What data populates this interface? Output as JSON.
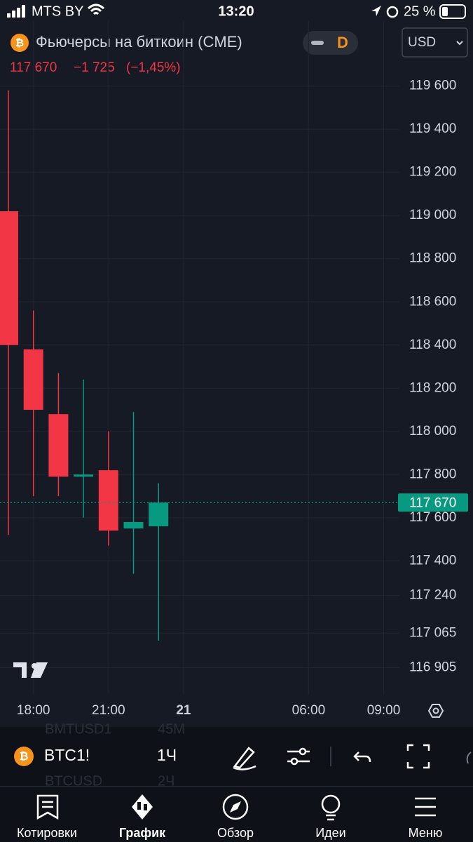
{
  "status_bar": {
    "carrier": "MTS BY",
    "time": "13:20",
    "battery": "25 %"
  },
  "header": {
    "title": "Фьючерсы на биткоин (CME)",
    "interval_button": "D",
    "currency": "USD",
    "price": "117 670",
    "change": "−1 725",
    "change_percent": "(−1,45%)"
  },
  "chart_data": {
    "type": "candlestick",
    "categories": [
      null,
      "18:00",
      null,
      null,
      "21:00",
      null,
      null,
      "21",
      null,
      null,
      null,
      null,
      "06:00",
      null,
      null,
      "09:00"
    ],
    "open": [
      119020,
      118380,
      118080,
      117790,
      117820,
      117550,
      117560,
      null,
      null,
      null,
      null,
      null,
      null,
      null,
      null,
      null
    ],
    "high": [
      119580,
      118560,
      118270,
      118240,
      118000,
      118090,
      117760,
      null,
      null,
      null,
      null,
      null,
      null,
      null,
      null,
      null
    ],
    "low": [
      117520,
      117700,
      117700,
      117600,
      117470,
      117340,
      117030,
      null,
      null,
      null,
      null,
      null,
      null,
      null,
      null,
      null
    ],
    "close": [
      118400,
      118100,
      117790,
      117800,
      117540,
      117580,
      117670,
      null,
      null,
      null,
      null,
      null,
      null,
      null,
      null,
      null
    ],
    "up_color": "#089981",
    "down_color": "#f23645",
    "ylim": [
      116780,
      119690
    ],
    "yticks": [
      {
        "value": 116905,
        "label": "116 905"
      },
      {
        "value": 117065,
        "label": "117 065"
      },
      {
        "value": 117240,
        "label": "117 240"
      },
      {
        "value": 117400,
        "label": "117 400"
      },
      {
        "value": 117600,
        "label": "117 600"
      },
      {
        "value": 117800,
        "label": "117 800"
      },
      {
        "value": 118000,
        "label": "118 000"
      },
      {
        "value": 118200,
        "label": "118 200"
      },
      {
        "value": 118400,
        "label": "118 400"
      },
      {
        "value": 118600,
        "label": "118 600"
      },
      {
        "value": 118800,
        "label": "118 800"
      },
      {
        "value": 119000,
        "label": "119 000"
      },
      {
        "value": 119200,
        "label": "119 200"
      },
      {
        "value": 119400,
        "label": "119 400"
      },
      {
        "value": 119600,
        "label": "119 600"
      }
    ],
    "last_price": {
      "value": 117670,
      "label": "117 670"
    },
    "grid": true
  },
  "toolbar": {
    "symbol": "BTC1!",
    "interval": "1Ч",
    "background_rows": [
      [
        "BMTUSD1",
        "45M"
      ],
      [
        "BTCUSD",
        "2Ч"
      ]
    ]
  },
  "tabs": [
    "Котировки",
    "График",
    "Обзор",
    "Идеи",
    "Меню"
  ]
}
